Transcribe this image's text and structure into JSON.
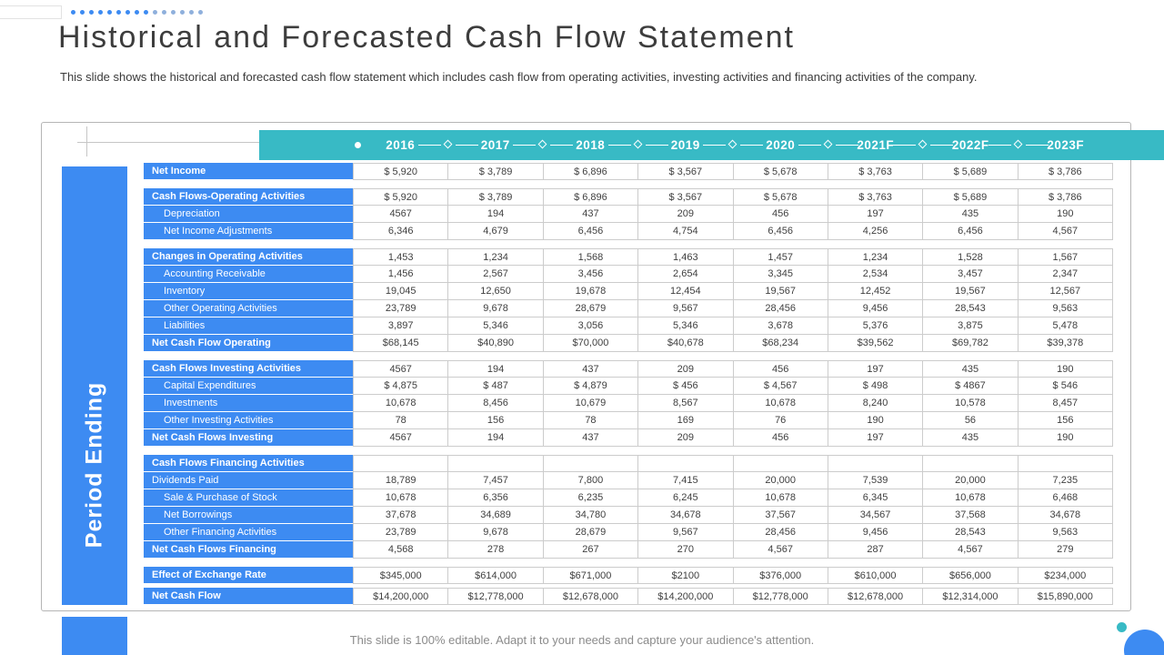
{
  "slide": {
    "title": "Historical and Forecasted Cash Flow Statement",
    "subtitle": "This slide shows the historical and forecasted cash flow statement which includes cash flow from operating activities, investing activities and financing activities of the company.",
    "footer": "This slide is 100% editable. Adapt it to your needs and capture your audience's attention.",
    "side_label": "Period Ending"
  },
  "colors": {
    "blue": "#3d8bf2",
    "teal": "#38bac5"
  },
  "table": {
    "years": [
      "2016",
      "2017",
      "2018",
      "2019",
      "2020",
      "2021F",
      "2022F",
      "2023F"
    ],
    "sections": [
      {
        "rows": [
          {
            "label": "Net Income",
            "bold": true,
            "indent": 0,
            "values": [
              "$ 5,920",
              "$ 3,789",
              "$ 6,896",
              "$ 3,567",
              "$ 5,678",
              "$ 3,763",
              "$ 5,689",
              "$ 3,786"
            ]
          }
        ]
      },
      {
        "rows": [
          {
            "label": "Cash Flows-Operating Activities",
            "bold": true,
            "indent": 0,
            "values": [
              "$ 5,920",
              "$ 3,789",
              "$ 6,896",
              "$ 3,567",
              "$ 5,678",
              "$ 3,763",
              "$ 5,689",
              "$ 3,786"
            ]
          },
          {
            "label": "Depreciation",
            "bold": false,
            "indent": 1,
            "values": [
              "4567",
              "194",
              "437",
              "209",
              "456",
              "197",
              "435",
              "190"
            ]
          },
          {
            "label": "Net Income Adjustments",
            "bold": false,
            "indent": 1,
            "values": [
              "6,346",
              "4,679",
              "6,456",
              "4,754",
              "6,456",
              "4,256",
              "6,456",
              "4,567"
            ]
          }
        ]
      },
      {
        "rows": [
          {
            "label": "Changes in Operating Activities",
            "bold": true,
            "indent": 0,
            "values": [
              "1,453",
              "1,234",
              "1,568",
              "1,463",
              "1,457",
              "1,234",
              "1,528",
              "1,567"
            ]
          },
          {
            "label": "Accounting Receivable",
            "bold": false,
            "indent": 1,
            "values": [
              "1,456",
              "2,567",
              "3,456",
              "2,654",
              "3,345",
              "2,534",
              "3,457",
              "2,347"
            ]
          },
          {
            "label": "Inventory",
            "bold": false,
            "indent": 1,
            "values": [
              "19,045",
              "12,650",
              "19,678",
              "12,454",
              "19,567",
              "12,452",
              "19,567",
              "12,567"
            ]
          },
          {
            "label": "Other Operating Activities",
            "bold": false,
            "indent": 1,
            "values": [
              "23,789",
              "9,678",
              "28,679",
              "9,567",
              "28,456",
              "9,456",
              "28,543",
              "9,563"
            ]
          },
          {
            "label": "Liabilities",
            "bold": false,
            "indent": 1,
            "values": [
              "3,897",
              "5,346",
              "3,056",
              "5,346",
              "3,678",
              "5,376",
              "3,875",
              "5,478"
            ]
          },
          {
            "label": "Net Cash Flow Operating",
            "bold": true,
            "indent": 0,
            "values": [
              "$68,145",
              "$40,890",
              "$70,000",
              "$40,678",
              "$68,234",
              "$39,562",
              "$69,782",
              "$39,378"
            ]
          }
        ]
      },
      {
        "rows": [
          {
            "label": "Cash Flows Investing Activities",
            "bold": true,
            "indent": 0,
            "values": [
              "4567",
              "194",
              "437",
              "209",
              "456",
              "197",
              "435",
              "190"
            ]
          },
          {
            "label": "Capital Expenditures",
            "bold": false,
            "indent": 1,
            "values": [
              "$ 4,875",
              "$ 487",
              "$ 4,879",
              "$ 456",
              "$ 4,567",
              "$ 498",
              "$ 4867",
              "$ 546"
            ]
          },
          {
            "label": "Investments",
            "bold": false,
            "indent": 1,
            "values": [
              "10,678",
              "8,456",
              "10,679",
              "8,567",
              "10,678",
              "8,240",
              "10,578",
              "8,457"
            ]
          },
          {
            "label": "Other Investing Activities",
            "bold": false,
            "indent": 1,
            "values": [
              "78",
              "156",
              "78",
              "169",
              "76",
              "190",
              "56",
              "156"
            ]
          },
          {
            "label": "Net Cash Flows Investing",
            "bold": true,
            "indent": 0,
            "values": [
              "4567",
              "194",
              "437",
              "209",
              "456",
              "197",
              "435",
              "190"
            ]
          }
        ]
      },
      {
        "rows": [
          {
            "label": "Cash Flows Financing Activities",
            "bold": true,
            "indent": 0,
            "values": [
              "",
              "",
              "",
              "",
              "",
              "",
              "",
              ""
            ]
          },
          {
            "label": "Dividends Paid",
            "bold": false,
            "indent": 0,
            "values": [
              "18,789",
              "7,457",
              "7,800",
              "7,415",
              "20,000",
              "7,539",
              "20,000",
              "7,235"
            ]
          },
          {
            "label": "Sale & Purchase of Stock",
            "bold": false,
            "indent": 1,
            "values": [
              "10,678",
              "6,356",
              "6,235",
              "6,245",
              "10,678",
              "6,345",
              "10,678",
              "6,468"
            ]
          },
          {
            "label": "Net Borrowings",
            "bold": false,
            "indent": 1,
            "values": [
              "37,678",
              "34,689",
              "34,780",
              "34,678",
              "37,567",
              "34,567",
              "37,568",
              "34,678"
            ]
          },
          {
            "label": "Other Financing Activities",
            "bold": false,
            "indent": 1,
            "values": [
              "23,789",
              "9,678",
              "28,679",
              "9,567",
              "28,456",
              "9,456",
              "28,543",
              "9,563"
            ]
          },
          {
            "label": "Net Cash Flows Financing",
            "bold": true,
            "indent": 0,
            "values": [
              "4,568",
              "278",
              "267",
              "270",
              "4,567",
              "287",
              "4,567",
              "279"
            ]
          }
        ]
      },
      {
        "small_gap": true,
        "rows": [
          {
            "label": "Effect of Exchange Rate",
            "bold": true,
            "indent": 0,
            "values": [
              "$345,000",
              "$614,000",
              "$671,000",
              "$2100",
              "$376,000",
              "$610,000",
              "$656,000",
              "$234,000"
            ]
          }
        ]
      },
      {
        "rows": [
          {
            "label": "Net Cash Flow",
            "bold": true,
            "indent": 0,
            "values": [
              "$14,200,000",
              "$12,778,000",
              "$12,678,000",
              "$14,200,000",
              "$12,778,000",
              "$12,678,000",
              "$12,314,000",
              "$15,890,000"
            ]
          }
        ]
      }
    ]
  }
}
